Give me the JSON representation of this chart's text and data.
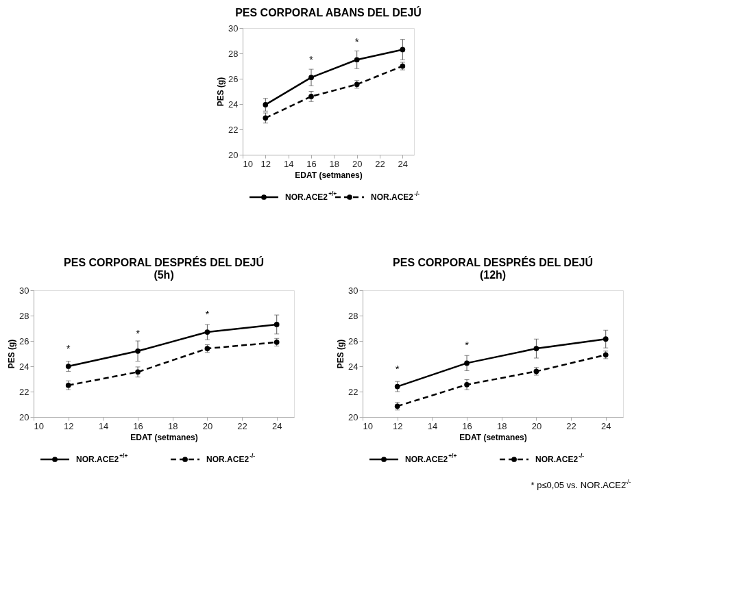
{
  "chart_data": [
    {
      "type": "line",
      "title": "PES CORPORAL ABANS DEL DEJÚ",
      "xlabel": "EDAT (setmanes)",
      "ylabel": "PES (g)",
      "x": [
        12,
        16,
        20,
        24
      ],
      "xlim": [
        10,
        25
      ],
      "xticks": [
        10,
        12,
        14,
        16,
        18,
        20,
        22,
        24
      ],
      "ylim": [
        20,
        30
      ],
      "yticks": [
        20,
        22,
        24,
        26,
        28,
        30
      ],
      "marker": "circle",
      "legend": "bottom",
      "series": [
        {
          "name": "NOR.ACE2$^{+/+}$",
          "color": "#000000",
          "line_style": "solid",
          "values": [
            23.95,
            26.1,
            27.5,
            28.3
          ],
          "errors": [
            0.5,
            0.65,
            0.7,
            0.8
          ]
        },
        {
          "name": "NOR.ACE2$^{-/-}$",
          "color": "#000000",
          "line_style": "dashed",
          "values": [
            22.9,
            24.6,
            25.55,
            27.0
          ],
          "errors": [
            0.4,
            0.4,
            0.3,
            0.3
          ]
        }
      ],
      "annotations": [
        {
          "text": "*",
          "x": 16,
          "y": 26.1
        },
        {
          "text": "*",
          "x": 20,
          "y": 27.5
        }
      ]
    },
    {
      "type": "line",
      "title": "PES CORPORAL DESPRÉS DEL DEJÚ\n(5h)",
      "xlabel": "EDAT (setmanes)",
      "ylabel": "PES (g)",
      "x": [
        12,
        16,
        20,
        24
      ],
      "xlim": [
        10,
        25
      ],
      "xticks": [
        10,
        12,
        14,
        16,
        18,
        20,
        22,
        24
      ],
      "ylim": [
        20,
        30
      ],
      "yticks": [
        20,
        22,
        24,
        26,
        28,
        30
      ],
      "marker": "circle",
      "legend": "bottom",
      "series": [
        {
          "name": "NOR.ACE2$^{+/+}$",
          "color": "#000000",
          "line_style": "solid",
          "values": [
            24.0,
            25.2,
            26.7,
            27.3
          ],
          "errors": [
            0.4,
            0.8,
            0.6,
            0.75
          ]
        },
        {
          "name": "NOR.ACE2$^{-/-}$",
          "color": "#000000",
          "line_style": "dashed",
          "values": [
            22.5,
            23.55,
            25.4,
            25.9
          ],
          "errors": [
            0.35,
            0.4,
            0.3,
            0.3
          ]
        }
      ],
      "annotations": [
        {
          "text": "*",
          "x": 12,
          "y": 24.0
        },
        {
          "text": "*",
          "x": 16,
          "y": 25.2
        },
        {
          "text": "*",
          "x": 20,
          "y": 26.7
        }
      ]
    },
    {
      "type": "line",
      "title": "PES CORPORAL DESPRÉS DEL DEJÚ\n(12h)",
      "xlabel": "EDAT (setmanes)",
      "ylabel": "PES (g)",
      "x": [
        12,
        16,
        20,
        24
      ],
      "xlim": [
        10,
        25
      ],
      "xticks": [
        10,
        12,
        14,
        16,
        18,
        20,
        22,
        24
      ],
      "ylim": [
        20,
        30
      ],
      "yticks": [
        20,
        22,
        24,
        26,
        28,
        30
      ],
      "marker": "circle",
      "legend": "bottom",
      "series": [
        {
          "name": "NOR.ACE2$^{+/+}$",
          "color": "#000000",
          "line_style": "solid",
          "values": [
            22.4,
            24.25,
            25.4,
            26.15
          ],
          "errors": [
            0.4,
            0.6,
            0.75,
            0.7
          ]
        },
        {
          "name": "NOR.ACE2$^{-/-}$",
          "color": "#000000",
          "line_style": "dashed",
          "values": [
            20.85,
            22.55,
            23.6,
            24.9
          ],
          "errors": [
            0.3,
            0.4,
            0.3,
            0.3
          ]
        }
      ],
      "annotations": [
        {
          "text": "*",
          "x": 12,
          "y": 22.4
        },
        {
          "text": "*",
          "x": 16,
          "y": 24.25
        },
        "* p≤0,05 vs. NOR.ACE2$^{-/-}$"
      ]
    }
  ]
}
